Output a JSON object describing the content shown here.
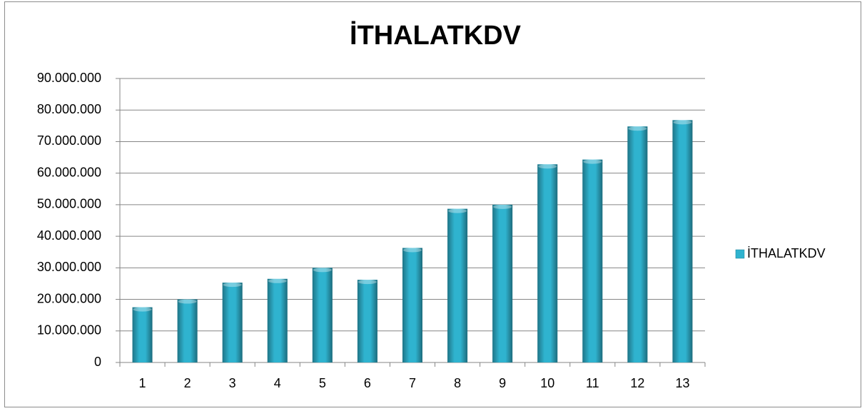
{
  "chart_data": {
    "type": "bar",
    "title": "İTHALATKDV",
    "categories": [
      "1",
      "2",
      "3",
      "4",
      "5",
      "6",
      "7",
      "8",
      "9",
      "10",
      "11",
      "12",
      "13"
    ],
    "series": [
      {
        "name": "İTHALATKDV",
        "color": "#2fb3cf",
        "values": [
          17500000,
          20000000,
          25300000,
          26500000,
          30000000,
          26200000,
          36300000,
          48700000,
          50000000,
          62800000,
          64300000,
          74800000,
          76800000
        ]
      }
    ],
    "ylim": [
      0,
      90000000
    ],
    "yticks": [
      0,
      {
        "value": 10000000,
        "label": "10.000.000"
      },
      {
        "value": 20000000,
        "label": "20.000.000"
      },
      {
        "value": 30000000,
        "label": "30.000.000"
      },
      {
        "value": 40000000,
        "label": "40.000.000"
      },
      {
        "value": 50000000,
        "label": "50.000.000"
      },
      {
        "value": 60000000,
        "label": "60.000.000"
      },
      {
        "value": 70000000,
        "label": "70.000.000"
      },
      {
        "value": 80000000,
        "label": "80.000.000"
      },
      {
        "value": 90000000,
        "label": "90.000.000"
      }
    ],
    "grid": true,
    "legend": "right"
  }
}
